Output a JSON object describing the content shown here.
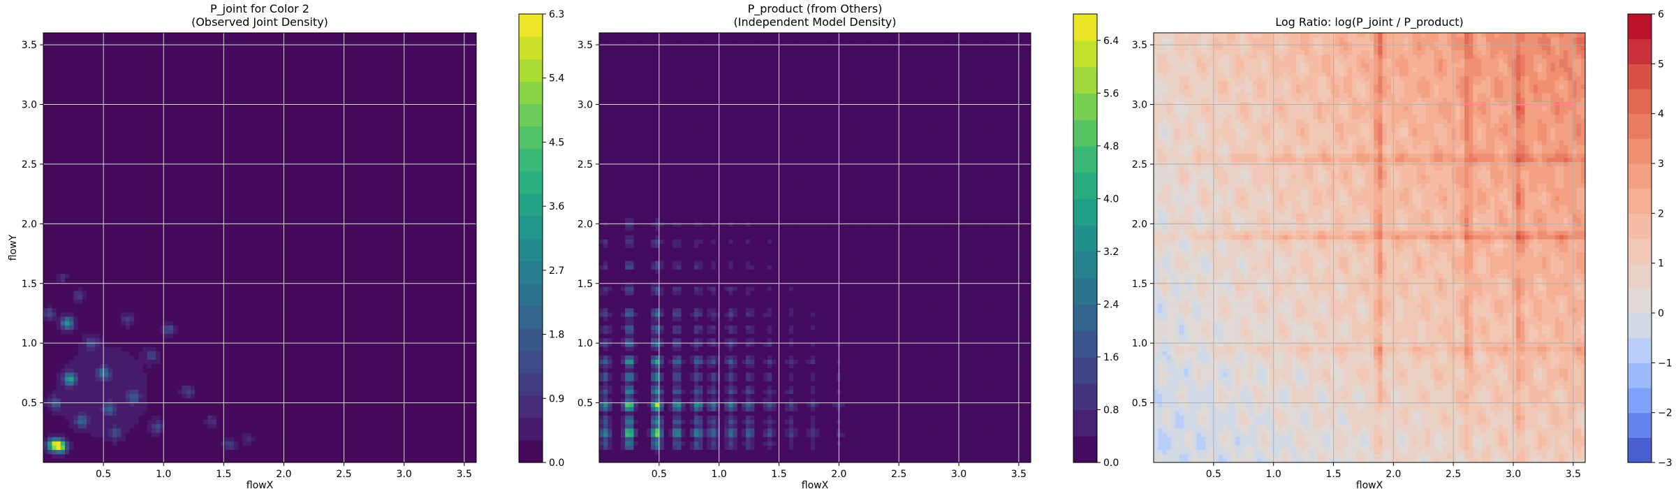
{
  "chart_data": [
    {
      "type": "heatmap",
      "title": "P_joint for Color 2\n(Observed Joint Density)",
      "xlabel": "flowX",
      "ylabel": "flowY",
      "xlim": [
        0.0,
        3.6
      ],
      "ylim": [
        0.0,
        3.6
      ],
      "xticks": [
        "0.5",
        "1.0",
        "1.5",
        "2.0",
        "2.5",
        "3.0",
        "3.5"
      ],
      "yticks": [
        "0.5",
        "1.0",
        "1.5",
        "2.0",
        "2.5",
        "3.0",
        "3.5"
      ],
      "grid": true,
      "colormap": "viridis",
      "color_range": [
        0.0,
        6.3
      ],
      "colorbar_ticks": [
        "0.0",
        "0.9",
        "1.8",
        "2.7",
        "3.6",
        "4.5",
        "5.4",
        "6.3"
      ],
      "background_value": 0.0,
      "peaks": [
        {
          "x": 0.14,
          "y": 0.14,
          "value": 5.8
        },
        {
          "x": 0.08,
          "y": 0.15,
          "value": 4.2
        },
        {
          "x": 0.2,
          "y": 1.17,
          "value": 3.2
        },
        {
          "x": 0.22,
          "y": 0.7,
          "value": 3.4
        },
        {
          "x": 0.5,
          "y": 0.75,
          "value": 2.2
        },
        {
          "x": 0.32,
          "y": 0.35,
          "value": 1.9
        },
        {
          "x": 0.55,
          "y": 0.45,
          "value": 1.7
        },
        {
          "x": 0.75,
          "y": 0.55,
          "value": 1.6
        },
        {
          "x": 1.05,
          "y": 1.12,
          "value": 1.4
        },
        {
          "x": 0.05,
          "y": 1.25,
          "value": 1.4
        },
        {
          "x": 0.4,
          "y": 1.0,
          "value": 1.3
        },
        {
          "x": 0.9,
          "y": 0.9,
          "value": 1.2
        },
        {
          "x": 1.2,
          "y": 0.6,
          "value": 1.1
        },
        {
          "x": 1.55,
          "y": 0.15,
          "value": 1.2
        },
        {
          "x": 1.4,
          "y": 0.35,
          "value": 0.9
        },
        {
          "x": 0.3,
          "y": 1.4,
          "value": 1.0
        },
        {
          "x": 0.6,
          "y": 0.25,
          "value": 1.3
        },
        {
          "x": 0.95,
          "y": 0.3,
          "value": 1.1
        },
        {
          "x": 0.1,
          "y": 0.5,
          "value": 1.5
        },
        {
          "x": 0.7,
          "y": 1.2,
          "value": 0.9
        },
        {
          "x": 1.7,
          "y": 0.2,
          "value": 0.8
        },
        {
          "x": 0.15,
          "y": 1.55,
          "value": 0.8
        }
      ]
    },
    {
      "type": "heatmap",
      "title": "P_product (from Others)\n(Independent Model Density)",
      "xlabel": "flowX",
      "ylabel": "",
      "xlim": [
        0.0,
        3.6
      ],
      "ylim": [
        0.0,
        3.6
      ],
      "xticks": [
        "0.5",
        "1.0",
        "1.5",
        "2.0",
        "2.5",
        "3.0",
        "3.5"
      ],
      "yticks": [
        "0.5",
        "1.0",
        "1.5",
        "2.0",
        "2.5",
        "3.0",
        "3.5"
      ],
      "grid": true,
      "colormap": "viridis",
      "color_range": [
        0.0,
        6.8
      ],
      "colorbar_ticks": [
        "0.0",
        "0.8",
        "1.6",
        "2.4",
        "3.2",
        "4.0",
        "4.8",
        "5.6",
        "6.4"
      ],
      "background_value": 0.0,
      "marginal_x_peaks": [
        {
          "x": 0.05,
          "value": 1.3
        },
        {
          "x": 0.25,
          "value": 2.2
        },
        {
          "x": 0.48,
          "value": 2.3
        },
        {
          "x": 0.65,
          "value": 1.4
        },
        {
          "x": 0.82,
          "value": 1.3
        },
        {
          "x": 0.95,
          "value": 1.0
        },
        {
          "x": 1.1,
          "value": 1.1
        },
        {
          "x": 1.25,
          "value": 0.9
        },
        {
          "x": 1.42,
          "value": 0.7
        },
        {
          "x": 1.6,
          "value": 0.55
        },
        {
          "x": 1.78,
          "value": 0.45
        },
        {
          "x": 2.0,
          "value": 0.35
        }
      ],
      "marginal_y_peaks": [
        {
          "y": 0.15,
          "value": 1.2
        },
        {
          "y": 0.25,
          "value": 2.3
        },
        {
          "y": 0.35,
          "value": 1.3
        },
        {
          "y": 0.48,
          "value": 2.4
        },
        {
          "y": 0.6,
          "value": 1.3
        },
        {
          "y": 0.72,
          "value": 1.3
        },
        {
          "y": 0.85,
          "value": 1.6
        },
        {
          "y": 1.0,
          "value": 1.1
        },
        {
          "y": 1.12,
          "value": 0.9
        },
        {
          "y": 1.25,
          "value": 1.0
        },
        {
          "y": 1.45,
          "value": 0.75
        },
        {
          "y": 1.65,
          "value": 0.65
        },
        {
          "y": 1.85,
          "value": 0.55
        },
        {
          "y": 2.0,
          "value": 0.45
        }
      ]
    },
    {
      "type": "heatmap",
      "title": "Log Ratio: log(P_joint / P_product)",
      "xlabel": "flowX",
      "ylabel": "",
      "xlim": [
        0.0,
        3.6
      ],
      "ylim": [
        0.0,
        3.6
      ],
      "xticks": [
        "0.5",
        "1.0",
        "1.5",
        "2.0",
        "2.5",
        "3.0",
        "3.5"
      ],
      "yticks": [
        "0.5",
        "1.0",
        "1.5",
        "2.0",
        "2.5",
        "3.0",
        "3.5"
      ],
      "grid": true,
      "colormap": "coolwarm",
      "color_range": [
        -3,
        6
      ],
      "colorbar_ticks": [
        "6",
        "5",
        "4",
        "3",
        "2",
        "1",
        "0",
        "−1",
        "−2",
        "−3"
      ],
      "trend": "ratio increases toward upper-right; slightly negative near lower-left",
      "value_at_corners": {
        "lower_left": -0.4,
        "lower_right": 1.2,
        "upper_left": 0.8,
        "upper_right": 3.6
      },
      "highlight_lines": [
        {
          "axis": "x",
          "at": 1.88,
          "value": 1.6
        },
        {
          "axis": "x",
          "at": 2.62,
          "value": 1.2
        },
        {
          "axis": "x",
          "at": 3.05,
          "value": 1.2
        },
        {
          "axis": "y",
          "at": 1.9,
          "value": 1.2
        },
        {
          "axis": "y",
          "at": 2.55,
          "value": 0.9
        },
        {
          "axis": "y",
          "at": 0.95,
          "value": 0.6
        }
      ]
    }
  ]
}
